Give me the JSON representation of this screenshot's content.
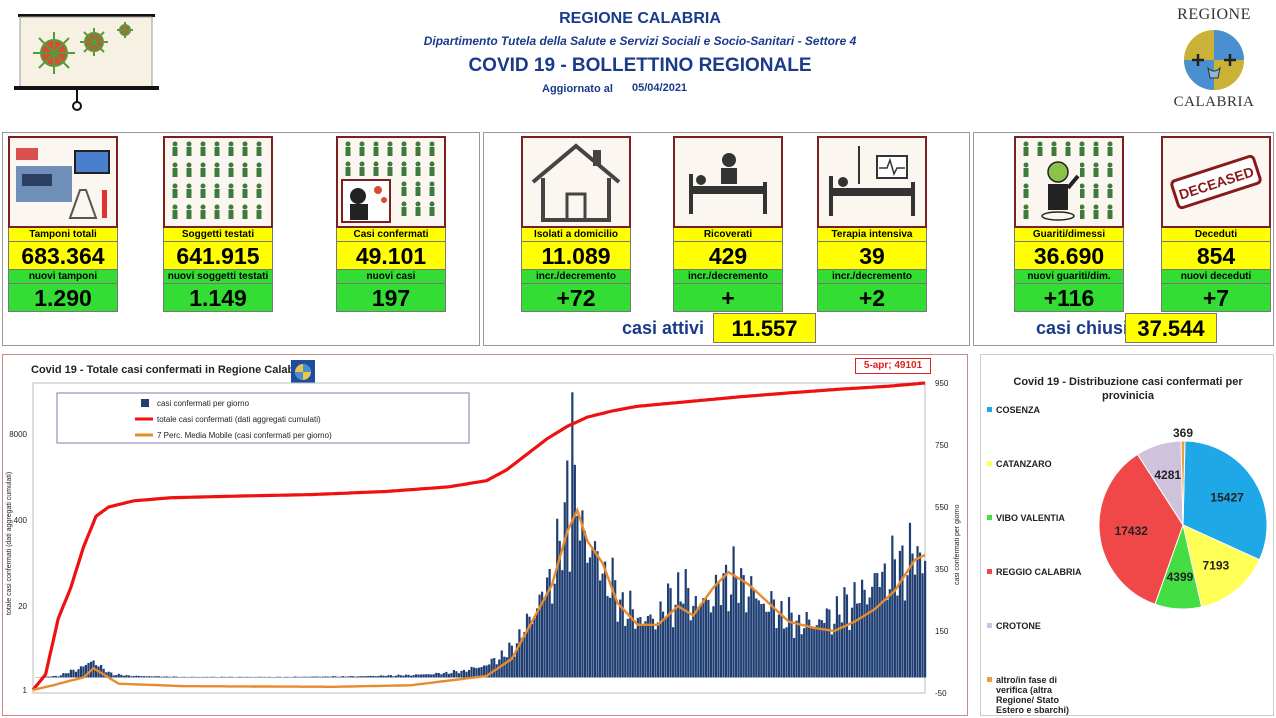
{
  "header": {
    "region": "REGIONE CALABRIA",
    "department": "Dipartimento Tutela della Salute e Servizi Sociali e Socio-Sanitari - Settore 4",
    "bulletin_title": "COVID 19 - BOLLETTINO REGIONALE",
    "updated_label": "Aggiornato al",
    "updated_date": "05/04/2021",
    "logo_top": "REGIONE",
    "logo_bottom": "CALABRIA"
  },
  "tiles": [
    {
      "id": "tamponi",
      "label": "Tamponi totali",
      "value": "683.364",
      "sublabel": "nuovi tamponi",
      "subvalue": "1.290"
    },
    {
      "id": "soggetti",
      "label": "Soggetti testati",
      "value": "641.915",
      "sublabel": "nuovi soggetti testati",
      "subvalue": "1.149"
    },
    {
      "id": "casi",
      "label": "Casi confermati",
      "value": "49.101",
      "sublabel": "nuovi casi",
      "subvalue": "197"
    },
    {
      "id": "isolati",
      "label": "Isolati a domicilio",
      "value": "11.089",
      "sublabel": "incr./decremento",
      "subvalue": "+72"
    },
    {
      "id": "ricoverati",
      "label": "Ricoverati",
      "value": "429",
      "sublabel": "incr./decremento",
      "subvalue": "+"
    },
    {
      "id": "terapia",
      "label": "Terapia intensiva",
      "value": "39",
      "sublabel": "incr./decremento",
      "subvalue": "+2"
    },
    {
      "id": "guariti",
      "label": "Guariti/dimessi",
      "value": "36.690",
      "sublabel": "nuovi guariti/dim.",
      "subvalue": "+116"
    },
    {
      "id": "deceduti",
      "label": "Deceduti",
      "value": "854",
      "sublabel": "nuovi deceduti",
      "subvalue": "+7"
    }
  ],
  "deceased_stamp": "DECEASED",
  "summary": {
    "active_label": "casi attivi",
    "active_value": "11.557",
    "closed_label": "casi chiusi",
    "closed_value": "37.544"
  },
  "chart_data": [
    {
      "type": "bar",
      "title": "Covid 19 - Totale casi confermati in Regione Calabria",
      "callout": "5-apr; 49101",
      "left_axis_ticks": [
        "8000",
        "400",
        "20",
        "1"
      ],
      "left_axis_label": "totale casi confermati (dati aggregati cumulati)",
      "right_axis_ticks": [
        950,
        750,
        550,
        350,
        150,
        -50
      ],
      "right_axis_label": "casi confermati per giorno",
      "right_ylim": [
        -50,
        950
      ],
      "legend": {
        "placement": "top-left",
        "entries": [
          {
            "name": "casi confermati per giorno",
            "color": "#1f3f73",
            "kind": "bar"
          },
          {
            "name": "totale casi confermati (dati aggregati cumulati)",
            "color": "#ee1111",
            "kind": "line"
          },
          {
            "name": "7 Perc. Media Mobile (casi confermati per giorno)",
            "color": "#e88a2e",
            "kind": "line"
          }
        ]
      },
      "series": [
        {
          "name": "casi confermati per giorno",
          "profile": [
            [
              0,
              0
            ],
            [
              10,
              5
            ],
            [
              15,
              20
            ],
            [
              20,
              35
            ],
            [
              24,
              55
            ],
            [
              28,
              25
            ],
            [
              32,
              10
            ],
            [
              40,
              5
            ],
            [
              60,
              2
            ],
            [
              100,
              2
            ],
            [
              130,
              4
            ],
            [
              150,
              8
            ],
            [
              160,
              12
            ],
            [
              170,
              20
            ],
            [
              180,
              40
            ],
            [
              190,
              90
            ],
            [
              196,
              170
            ],
            [
              202,
              260
            ],
            [
              206,
              330
            ],
            [
              210,
              450
            ],
            [
              214,
              550
            ],
            [
              218,
              480
            ],
            [
              222,
              400
            ],
            [
              228,
              320
            ],
            [
              234,
              230
            ],
            [
              240,
              190
            ],
            [
              246,
              180
            ],
            [
              252,
              240
            ],
            [
              258,
              280
            ],
            [
              264,
              230
            ],
            [
              270,
              260
            ],
            [
              276,
              320
            ],
            [
              282,
              300
            ],
            [
              288,
              250
            ],
            [
              294,
              220
            ],
            [
              300,
              190
            ],
            [
              306,
              170
            ],
            [
              312,
              180
            ],
            [
              318,
              200
            ],
            [
              324,
              240
            ],
            [
              330,
              270
            ],
            [
              336,
              320
            ],
            [
              342,
              350
            ],
            [
              348,
              380
            ],
            [
              354,
              400
            ]
          ]
        },
        {
          "name": "totale casi confermati (dati aggregati cumulati)",
          "profile": [
            [
              0,
              -40
            ],
            [
              5,
              10
            ],
            [
              10,
              190
            ],
            [
              15,
              290
            ],
            [
              20,
              420
            ],
            [
              25,
              520
            ],
            [
              30,
              550
            ],
            [
              40,
              570
            ],
            [
              55,
              580
            ],
            [
              80,
              585
            ],
            [
              110,
              590
            ],
            [
              140,
              600
            ],
            [
              165,
              615
            ],
            [
              180,
              635
            ],
            [
              188,
              670
            ],
            [
              196,
              720
            ],
            [
              204,
              770
            ],
            [
              212,
              810
            ],
            [
              220,
              840
            ],
            [
              230,
              860
            ],
            [
              240,
              875
            ],
            [
              260,
              890
            ],
            [
              280,
              905
            ],
            [
              300,
              918
            ],
            [
              320,
              930
            ],
            [
              340,
              940
            ],
            [
              354,
              950
            ]
          ]
        },
        {
          "name": "7 Perc. Media Mobile (casi confermati per giorno)",
          "profile": [
            [
              0,
              -40
            ],
            [
              8,
              -25
            ],
            [
              14,
              -12
            ],
            [
              20,
              0
            ],
            [
              24,
              30
            ],
            [
              28,
              10
            ],
            [
              34,
              -20
            ],
            [
              60,
              -28
            ],
            [
              120,
              -30
            ],
            [
              150,
              -25
            ],
            [
              165,
              -10
            ],
            [
              180,
              5
            ],
            [
              190,
              60
            ],
            [
              198,
              180
            ],
            [
              206,
              300
            ],
            [
              212,
              470
            ],
            [
              216,
              540
            ],
            [
              220,
              440
            ],
            [
              226,
              370
            ],
            [
              232,
              240
            ],
            [
              240,
              170
            ],
            [
              248,
              170
            ],
            [
              256,
              230
            ],
            [
              262,
              200
            ],
            [
              270,
              290
            ],
            [
              276,
              340
            ],
            [
              284,
              300
            ],
            [
              292,
              240
            ],
            [
              300,
              180
            ],
            [
              310,
              160
            ],
            [
              318,
              150
            ],
            [
              326,
              180
            ],
            [
              334,
              220
            ],
            [
              342,
              280
            ],
            [
              350,
              380
            ],
            [
              354,
              395
            ]
          ]
        }
      ]
    },
    {
      "type": "pie",
      "title": "Covid 19 - Distribuzione casi confermati per provinicia",
      "legend_placement": "left",
      "slices": [
        {
          "name": "COSENZA",
          "value": 15427,
          "color": "#1fa8e8"
        },
        {
          "name": "CATANZARO",
          "value": 7193,
          "color": "#ffff55"
        },
        {
          "name": "VIBO VALENTIA",
          "value": 4399,
          "color": "#44dd44"
        },
        {
          "name": "REGGIO CALABRIA",
          "value": 17432,
          "color": "#f04848"
        },
        {
          "name": "CROTONE",
          "value": 4281,
          "color": "#cfc2dd"
        },
        {
          "name": "altro/in fase di verifica (altra Regione/ Stato Estero e sbarchi)",
          "value": 369,
          "color": "#e8a040"
        }
      ]
    }
  ],
  "colors": {
    "accent_blue": "#1a3a8a",
    "kpi_yellow": "#ffff00",
    "kpi_green": "#33dd33",
    "tile_border": "#7a2020"
  }
}
